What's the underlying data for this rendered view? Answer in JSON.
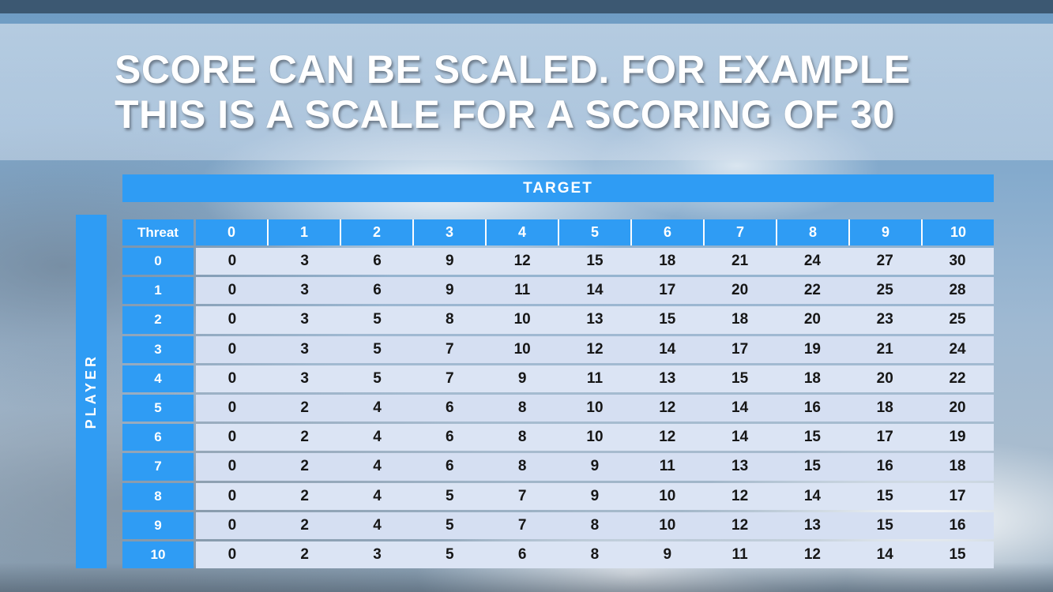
{
  "slide": {
    "title_line1": "SCORE CAN BE SCALED. FOR EXAMPLE",
    "title_line2": "THIS IS A SCALE FOR A SCORING OF 30"
  },
  "table": {
    "target_label": "TARGET",
    "player_label": "PLAYER",
    "corner_label": "Threat",
    "col_headers": [
      "0",
      "1",
      "2",
      "3",
      "4",
      "5",
      "6",
      "7",
      "8",
      "9",
      "10"
    ],
    "row_headers": [
      "0",
      "1",
      "2",
      "3",
      "4",
      "5",
      "6",
      "7",
      "8",
      "9",
      "10"
    ],
    "rows": [
      [
        0,
        3,
        6,
        9,
        12,
        15,
        18,
        21,
        24,
        27,
        30
      ],
      [
        0,
        3,
        6,
        9,
        11,
        14,
        17,
        20,
        22,
        25,
        28
      ],
      [
        0,
        3,
        5,
        8,
        10,
        13,
        15,
        18,
        20,
        23,
        25
      ],
      [
        0,
        3,
        5,
        7,
        10,
        12,
        14,
        17,
        19,
        21,
        24
      ],
      [
        0,
        3,
        5,
        7,
        9,
        11,
        13,
        15,
        18,
        20,
        22
      ],
      [
        0,
        2,
        4,
        6,
        8,
        10,
        12,
        14,
        16,
        18,
        20
      ],
      [
        0,
        2,
        4,
        6,
        8,
        10,
        12,
        14,
        15,
        17,
        19
      ],
      [
        0,
        2,
        4,
        6,
        8,
        9,
        11,
        13,
        15,
        16,
        18
      ],
      [
        0,
        2,
        4,
        5,
        7,
        9,
        10,
        12,
        14,
        15,
        17
      ],
      [
        0,
        2,
        4,
        5,
        7,
        8,
        10,
        12,
        13,
        15,
        16
      ],
      [
        0,
        2,
        3,
        5,
        6,
        8,
        9,
        11,
        12,
        14,
        15
      ]
    ]
  },
  "colors": {
    "accent_blue": "#2f9cf4",
    "row_a": "#dbe4f4",
    "row_b": "#d5dff2",
    "ink": "#161616"
  }
}
